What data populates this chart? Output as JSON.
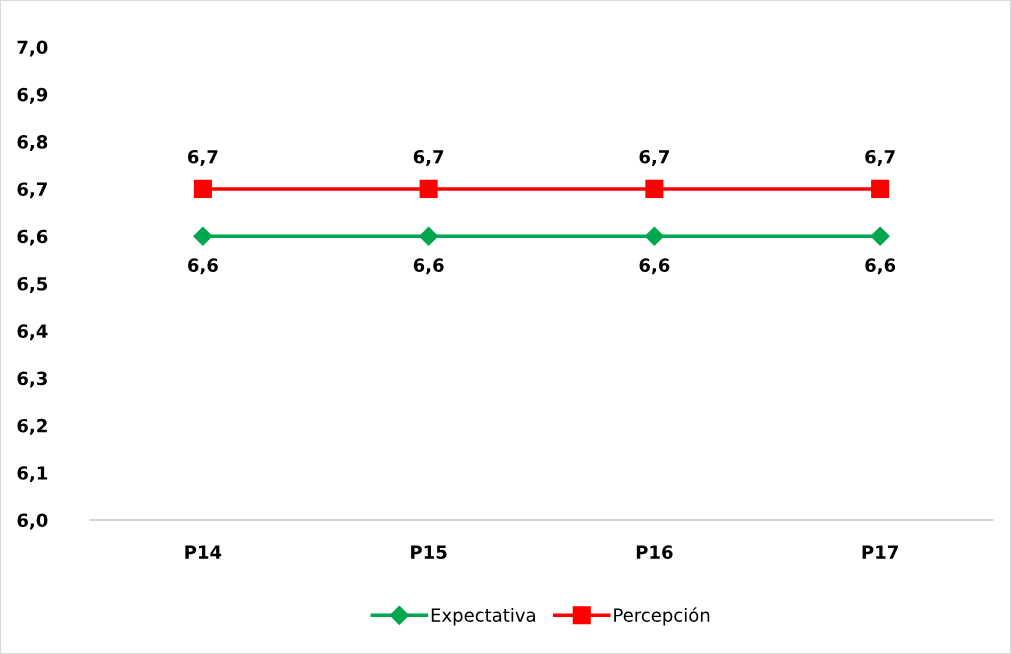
{
  "chart_data": {
    "type": "line",
    "categories": [
      "P14",
      "P15",
      "P16",
      "P17"
    ],
    "series": [
      {
        "name": "Expectativa",
        "color": "#00a650",
        "values": [
          6.6,
          6.6,
          6.6,
          6.6
        ],
        "value_labels": [
          "6,6",
          "6,6",
          "6,6",
          "6,6"
        ],
        "marker": "diamond"
      },
      {
        "name": "Percepción",
        "color": "#ff0000",
        "values": [
          6.7,
          6.7,
          6.7,
          6.7
        ],
        "value_labels": [
          "6,7",
          "6,7",
          "6,7",
          "6,7"
        ],
        "marker": "square"
      }
    ],
    "ylim": [
      6.0,
      7.0
    ],
    "yticks": [
      {
        "value": 6.0,
        "label": "6,0"
      },
      {
        "value": 6.1,
        "label": "6,1"
      },
      {
        "value": 6.2,
        "label": "6,2"
      },
      {
        "value": 6.3,
        "label": "6,3"
      },
      {
        "value": 6.4,
        "label": "6,4"
      },
      {
        "value": 6.5,
        "label": "6,5"
      },
      {
        "value": 6.6,
        "label": "6,6"
      },
      {
        "value": 6.7,
        "label": "6,7"
      },
      {
        "value": 6.8,
        "label": "6,8"
      },
      {
        "value": 6.9,
        "label": "6,9"
      },
      {
        "value": 7.0,
        "label": "7,0"
      }
    ],
    "grid": false,
    "legend": "bottom",
    "line_style": "solid"
  }
}
